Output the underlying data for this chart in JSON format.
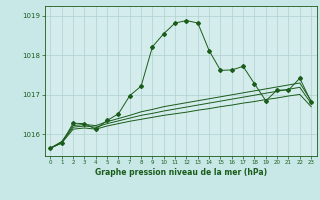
{
  "title": "Graphe pression niveau de la mer (hPa)",
  "bg_color": "#c8e8e8",
  "plot_bg_color": "#d4ecec",
  "grid_color": "#b0d0d0",
  "line_color": "#1a5c1a",
  "x_labels": [
    "0",
    "1",
    "2",
    "3",
    "4",
    "5",
    "6",
    "7",
    "8",
    "9",
    "10",
    "11",
    "12",
    "13",
    "14",
    "15",
    "16",
    "17",
    "18",
    "19",
    "20",
    "21",
    "22",
    "23"
  ],
  "ylim": [
    1015.45,
    1019.25
  ],
  "yticks": [
    1016,
    1017,
    1018,
    1019
  ],
  "series_main": [
    1015.65,
    1015.78,
    1016.28,
    1016.27,
    1016.13,
    1016.35,
    1016.52,
    1016.98,
    1017.22,
    1018.22,
    1018.55,
    1018.82,
    1018.88,
    1018.82,
    1018.12,
    1017.62,
    1017.63,
    1017.72,
    1017.28,
    1016.85,
    1017.12,
    1017.12,
    1017.42,
    1016.82
  ],
  "series_flat1": [
    1015.65,
    1015.82,
    1016.22,
    1016.25,
    1016.22,
    1016.32,
    1016.4,
    1016.48,
    1016.57,
    1016.63,
    1016.7,
    1016.75,
    1016.8,
    1016.85,
    1016.9,
    1016.95,
    1017.0,
    1017.05,
    1017.1,
    1017.15,
    1017.2,
    1017.25,
    1017.3,
    1016.85
  ],
  "series_flat2": [
    1015.65,
    1015.8,
    1016.18,
    1016.21,
    1016.18,
    1016.27,
    1016.34,
    1016.41,
    1016.48,
    1016.53,
    1016.59,
    1016.64,
    1016.69,
    1016.74,
    1016.79,
    1016.84,
    1016.89,
    1016.94,
    1016.99,
    1017.04,
    1017.09,
    1017.14,
    1017.19,
    1016.78
  ],
  "series_flat3": [
    1015.65,
    1015.78,
    1016.13,
    1016.16,
    1016.13,
    1016.21,
    1016.27,
    1016.33,
    1016.38,
    1016.43,
    1016.48,
    1016.52,
    1016.56,
    1016.61,
    1016.65,
    1016.7,
    1016.74,
    1016.79,
    1016.83,
    1016.88,
    1016.92,
    1016.97,
    1017.01,
    1016.7
  ]
}
